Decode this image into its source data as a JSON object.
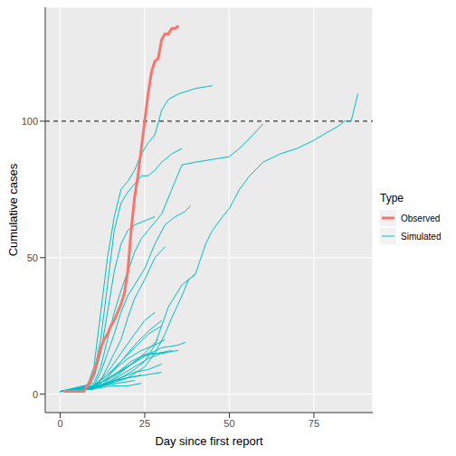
{
  "chart_data": {
    "type": "line",
    "x_label": "Day since first report",
    "y_label": "Cumulative cases",
    "legend_title": "Type",
    "legend": "right",
    "grid": true,
    "xlim": [
      -4.4,
      92.4
    ],
    "xticks": [
      0,
      25,
      50,
      75
    ],
    "ylim": [
      -6.75,
      141.75
    ],
    "yticks": [
      0,
      50,
      100
    ],
    "reference_line": 100,
    "series": [
      {
        "name": "Observed",
        "color": "#F8766D",
        "x": [
          1,
          2,
          3,
          4,
          5,
          6,
          7,
          8,
          9,
          10,
          11,
          12,
          13,
          14,
          15,
          16,
          17,
          18,
          19,
          20,
          21,
          22,
          23,
          24,
          25,
          26,
          27,
          28,
          29,
          30,
          31,
          32,
          33,
          34,
          35
        ],
        "values": [
          1,
          1,
          1,
          1,
          1,
          1,
          1,
          3,
          5,
          8,
          12,
          17,
          20,
          22,
          25,
          27,
          30,
          33,
          37,
          45,
          60,
          72,
          80,
          90,
          100,
          110,
          118,
          122,
          123,
          130,
          132,
          132,
          134,
          134,
          135
        ]
      },
      {
        "name": "Simulated",
        "color": "#00BFC4",
        "x": [
          0,
          8,
          10,
          12,
          14,
          16,
          18,
          20,
          22,
          24,
          26,
          28,
          30,
          32,
          35,
          40,
          45
        ],
        "values": [
          1,
          3,
          10,
          30,
          50,
          65,
          75,
          78,
          82,
          88,
          92,
          95,
          104,
          108,
          110,
          112,
          113
        ]
      },
      {
        "name": "Simulated",
        "color": "#00BFC4",
        "x": [
          0,
          8,
          10,
          12,
          14,
          16,
          18,
          20,
          22,
          24,
          26,
          28,
          30,
          33,
          36
        ],
        "values": [
          1,
          3,
          8,
          20,
          40,
          60,
          70,
          74,
          77,
          80,
          80,
          82,
          85,
          88,
          90
        ]
      },
      {
        "name": "Simulated",
        "color": "#00BFC4",
        "x": [
          0,
          8,
          10,
          12,
          14,
          16,
          18,
          20,
          22,
          24,
          26,
          28
        ],
        "values": [
          1,
          2,
          6,
          15,
          30,
          45,
          55,
          60,
          62,
          63,
          64,
          65
        ]
      },
      {
        "name": "Simulated",
        "color": "#00BFC4",
        "x": [
          0,
          10,
          12,
          14,
          16,
          18,
          20,
          22,
          24,
          26,
          28,
          30,
          33,
          36,
          40,
          45,
          50,
          53,
          57,
          60
        ],
        "values": [
          1,
          4,
          10,
          20,
          30,
          38,
          45,
          52,
          57,
          60,
          63,
          66,
          75,
          84,
          85,
          86,
          87,
          90,
          95,
          99
        ]
      },
      {
        "name": "Simulated",
        "color": "#00BFC4",
        "x": [
          0,
          10,
          15,
          20,
          25,
          28,
          31,
          33,
          36,
          38,
          40,
          43,
          45,
          48,
          50,
          53,
          56,
          60,
          65,
          70,
          75,
          79,
          82,
          84,
          86,
          88
        ],
        "values": [
          1,
          2,
          4,
          6,
          10,
          15,
          22,
          28,
          36,
          42,
          44,
          55,
          60,
          65,
          68,
          75,
          80,
          85,
          88,
          90,
          93,
          96,
          98,
          100,
          100,
          110
        ]
      },
      {
        "name": "Simulated",
        "color": "#00BFC4",
        "x": [
          0,
          10,
          12,
          14,
          16,
          18,
          20,
          22,
          25,
          28,
          31,
          34,
          37,
          38.5
        ],
        "values": [
          1,
          3,
          8,
          15,
          22,
          30,
          36,
          40,
          46,
          55,
          62,
          65,
          67,
          69
        ]
      },
      {
        "name": "Simulated",
        "color": "#00BFC4",
        "x": [
          0,
          10,
          12,
          14,
          16,
          18,
          20,
          22,
          25,
          28,
          31
        ],
        "values": [
          1,
          2,
          5,
          10,
          15,
          20,
          28,
          35,
          42,
          50,
          54
        ]
      },
      {
        "name": "Simulated",
        "color": "#00BFC4",
        "x": [
          0,
          10,
          14,
          18,
          22,
          25,
          28,
          30,
          32,
          34,
          36,
          38,
          40
        ],
        "values": [
          1,
          2,
          4,
          6,
          9,
          12,
          18,
          25,
          32,
          36,
          40,
          42,
          44
        ]
      },
      {
        "name": "Simulated",
        "color": "#00BFC4",
        "x": [
          0,
          10,
          14,
          18,
          22,
          25,
          28
        ],
        "values": [
          1,
          3,
          8,
          15,
          22,
          27,
          30
        ]
      },
      {
        "name": "Simulated",
        "color": "#00BFC4",
        "x": [
          0,
          10,
          14,
          18,
          22,
          26,
          30
        ],
        "values": [
          1,
          2,
          6,
          12,
          18,
          23,
          27
        ]
      },
      {
        "name": "Simulated",
        "color": "#00BFC4",
        "x": [
          0,
          10,
          15,
          20,
          25,
          30,
          35,
          37
        ],
        "values": [
          1,
          2,
          5,
          10,
          14,
          17,
          18,
          19
        ]
      },
      {
        "name": "Simulated",
        "color": "#00BFC4",
        "x": [
          0,
          8,
          12,
          16,
          20,
          24,
          28,
          31
        ],
        "values": [
          1,
          2,
          5,
          9,
          13,
          16,
          18,
          20
        ]
      },
      {
        "name": "Simulated",
        "color": "#00BFC4",
        "x": [
          0,
          10,
          14,
          18,
          22,
          26,
          30,
          35
        ],
        "values": [
          1,
          2,
          4,
          7,
          10,
          13,
          15,
          16
        ]
      },
      {
        "name": "Simulated",
        "color": "#00BFC4",
        "x": [
          0,
          9,
          13,
          17,
          21,
          25,
          29,
          33
        ],
        "values": [
          1,
          2,
          5,
          8,
          11,
          14,
          15,
          16
        ]
      },
      {
        "name": "Simulated",
        "color": "#00BFC4",
        "x": [
          0,
          10,
          14,
          18,
          22,
          26,
          30
        ],
        "values": [
          1,
          2,
          4,
          6,
          8,
          9,
          11
        ]
      },
      {
        "name": "Simulated",
        "color": "#00BFC4",
        "x": [
          0,
          10,
          15,
          20,
          25,
          30
        ],
        "values": [
          1,
          2,
          4,
          6,
          7,
          8
        ]
      },
      {
        "name": "Simulated",
        "color": "#00BFC4",
        "x": [
          0,
          8,
          12,
          16,
          20,
          24
        ],
        "values": [
          1,
          2,
          3,
          5,
          6,
          7
        ]
      },
      {
        "name": "Simulated",
        "color": "#00BFC4",
        "x": [
          0,
          10,
          15,
          20,
          25,
          29
        ],
        "values": [
          1,
          3,
          6,
          10,
          15,
          20
        ]
      },
      {
        "name": "Simulated",
        "color": "#00BFC4",
        "x": [
          0,
          7,
          12,
          17,
          22
        ],
        "values": [
          1,
          2,
          3,
          4,
          5
        ]
      },
      {
        "name": "Simulated",
        "color": "#00BFC4",
        "x": [
          0,
          9,
          13,
          17,
          21,
          26,
          31
        ],
        "values": [
          1,
          2,
          4,
          8,
          12,
          15,
          15
        ]
      },
      {
        "name": "Simulated",
        "color": "#00BFC4",
        "x": [
          0,
          10,
          14,
          18,
          22,
          26,
          30
        ],
        "values": [
          1,
          3,
          7,
          12,
          17,
          22,
          25
        ]
      },
      {
        "name": "Simulated",
        "color": "#00BFC4",
        "x": [
          0,
          10,
          15,
          20,
          24
        ],
        "values": [
          1,
          2,
          3,
          3,
          4
        ]
      }
    ]
  }
}
